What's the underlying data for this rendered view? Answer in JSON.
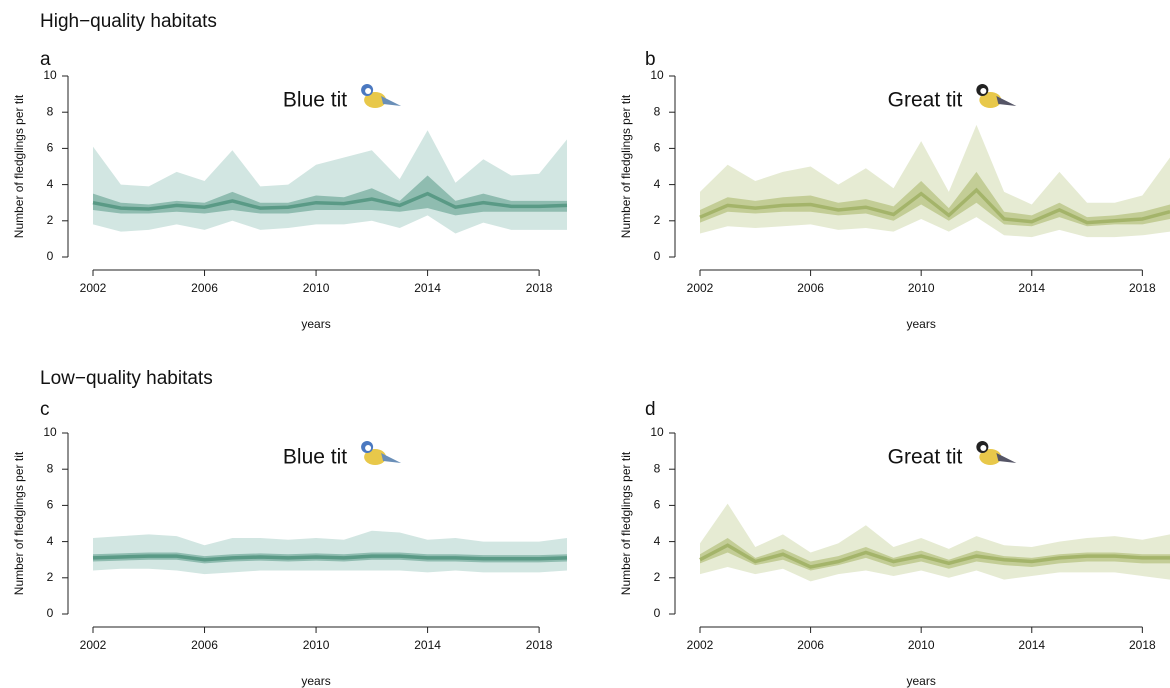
{
  "headings": [
    "High−quality habitats",
    "Low−quality habitats"
  ],
  "chart_data": [
    {
      "type": "line",
      "panel": "a",
      "title": "Blue tit",
      "xlabel": "years",
      "ylabel": "Number of fledglings per tit",
      "x": [
        2002,
        2003,
        2004,
        2005,
        2006,
        2007,
        2008,
        2009,
        2010,
        2011,
        2012,
        2013,
        2014,
        2015,
        2016,
        2017,
        2018,
        2019
      ],
      "xlim": [
        2002,
        2019
      ],
      "xticks": [
        2002,
        2006,
        2010,
        2014,
        2018
      ],
      "ylim": [
        0,
        10
      ],
      "yticks": [
        0,
        2,
        4,
        6,
        8,
        10
      ],
      "color": "#5a9a86",
      "inner_color": "#8fbcb0",
      "outer_color": "#d2e6e2",
      "values": [
        3.0,
        2.7,
        2.65,
        2.85,
        2.75,
        3.1,
        2.7,
        2.75,
        3.0,
        2.95,
        3.2,
        2.85,
        3.5,
        2.75,
        3.0,
        2.8,
        2.8,
        2.85
      ],
      "inner_band": {
        "lower": [
          2.6,
          2.4,
          2.4,
          2.5,
          2.4,
          2.6,
          2.4,
          2.4,
          2.6,
          2.6,
          2.6,
          2.5,
          2.7,
          2.3,
          2.5,
          2.5,
          2.5,
          2.5
        ],
        "upper": [
          3.5,
          3.0,
          2.9,
          3.1,
          3.0,
          3.6,
          3.0,
          3.0,
          3.4,
          3.3,
          3.8,
          3.1,
          4.5,
          3.1,
          3.5,
          3.1,
          3.1,
          3.1
        ]
      },
      "outer_band": {
        "lower": [
          1.8,
          1.4,
          1.5,
          1.8,
          1.5,
          2.0,
          1.5,
          1.6,
          1.8,
          1.8,
          2.0,
          1.6,
          2.3,
          1.3,
          1.9,
          1.5,
          1.5,
          1.5
        ],
        "upper": [
          6.1,
          4.0,
          3.9,
          4.7,
          4.2,
          5.9,
          3.9,
          4.0,
          5.1,
          5.5,
          5.9,
          4.3,
          7.0,
          4.1,
          5.4,
          4.5,
          4.6,
          6.5
        ]
      }
    },
    {
      "type": "line",
      "panel": "b",
      "title": "Great tit",
      "xlabel": "years",
      "ylabel": "Number of fledglings per tit",
      "x": [
        2002,
        2003,
        2004,
        2005,
        2006,
        2007,
        2008,
        2009,
        2010,
        2011,
        2012,
        2013,
        2014,
        2015,
        2016,
        2017,
        2018,
        2019
      ],
      "xlim": [
        2002,
        2019
      ],
      "xticks": [
        2002,
        2006,
        2010,
        2014,
        2018
      ],
      "ylim": [
        0,
        10
      ],
      "yticks": [
        0,
        2,
        4,
        6,
        8,
        10
      ],
      "color": "#a4b46a",
      "inner_color": "#c3cd96",
      "outer_color": "#e6ebd3",
      "values": [
        2.2,
        2.85,
        2.7,
        2.85,
        2.9,
        2.6,
        2.75,
        2.35,
        3.5,
        2.3,
        3.7,
        2.1,
        1.95,
        2.6,
        1.9,
        2.0,
        2.1,
        2.5
      ],
      "inner_band": {
        "lower": [
          1.9,
          2.5,
          2.4,
          2.5,
          2.5,
          2.3,
          2.4,
          2.0,
          2.9,
          2.0,
          3.0,
          1.8,
          1.7,
          2.2,
          1.7,
          1.8,
          1.8,
          2.1
        ],
        "upper": [
          2.6,
          3.3,
          3.1,
          3.3,
          3.4,
          3.0,
          3.2,
          2.8,
          4.2,
          2.7,
          4.7,
          2.5,
          2.3,
          3.0,
          2.2,
          2.3,
          2.5,
          2.9
        ]
      },
      "outer_band": {
        "lower": [
          1.3,
          1.7,
          1.6,
          1.7,
          1.8,
          1.5,
          1.6,
          1.4,
          2.1,
          1.4,
          2.2,
          1.2,
          1.1,
          1.5,
          1.1,
          1.1,
          1.2,
          1.4
        ],
        "upper": [
          3.6,
          5.1,
          4.2,
          4.7,
          5.0,
          4.0,
          4.9,
          3.8,
          6.4,
          3.6,
          7.3,
          3.6,
          2.9,
          4.7,
          3.0,
          3.0,
          3.4,
          5.5
        ]
      }
    },
    {
      "type": "line",
      "panel": "c",
      "title": "Blue tit",
      "xlabel": "years",
      "ylabel": "Number of fledglings per tit",
      "x": [
        2002,
        2003,
        2004,
        2005,
        2006,
        2007,
        2008,
        2009,
        2010,
        2011,
        2012,
        2013,
        2014,
        2015,
        2016,
        2017,
        2018,
        2019
      ],
      "xlim": [
        2002,
        2019
      ],
      "xticks": [
        2002,
        2006,
        2010,
        2014,
        2018
      ],
      "ylim": [
        0,
        10
      ],
      "yticks": [
        0,
        2,
        4,
        6,
        8,
        10
      ],
      "color": "#5a9a86",
      "inner_color": "#8fbcb0",
      "outer_color": "#d2e6e2",
      "values": [
        3.1,
        3.15,
        3.2,
        3.2,
        3.0,
        3.1,
        3.15,
        3.1,
        3.15,
        3.1,
        3.2,
        3.2,
        3.1,
        3.1,
        3.05,
        3.05,
        3.05,
        3.1
      ],
      "inner_band": {
        "lower": [
          2.9,
          2.95,
          3.0,
          3.0,
          2.8,
          2.9,
          2.95,
          2.9,
          2.95,
          2.9,
          3.0,
          3.0,
          2.9,
          2.9,
          2.85,
          2.85,
          2.85,
          2.9
        ],
        "upper": [
          3.3,
          3.35,
          3.4,
          3.4,
          3.2,
          3.3,
          3.35,
          3.3,
          3.35,
          3.3,
          3.4,
          3.4,
          3.3,
          3.3,
          3.25,
          3.25,
          3.25,
          3.3
        ]
      },
      "outer_band": {
        "lower": [
          2.4,
          2.5,
          2.5,
          2.4,
          2.2,
          2.3,
          2.4,
          2.4,
          2.4,
          2.4,
          2.4,
          2.4,
          2.3,
          2.4,
          2.3,
          2.3,
          2.3,
          2.4
        ],
        "upper": [
          4.2,
          4.3,
          4.4,
          4.3,
          3.8,
          4.2,
          4.2,
          4.1,
          4.2,
          4.1,
          4.6,
          4.5,
          4.1,
          4.2,
          4.0,
          4.0,
          4.0,
          4.2
        ]
      }
    },
    {
      "type": "line",
      "panel": "d",
      "title": "Great tit",
      "xlabel": "years",
      "ylabel": "Number of fledglings per tit",
      "x": [
        2002,
        2003,
        2004,
        2005,
        2006,
        2007,
        2008,
        2009,
        2010,
        2011,
        2012,
        2013,
        2014,
        2015,
        2016,
        2017,
        2018,
        2019
      ],
      "xlim": [
        2002,
        2019
      ],
      "xticks": [
        2002,
        2006,
        2010,
        2014,
        2018
      ],
      "ylim": [
        0,
        10
      ],
      "yticks": [
        0,
        2,
        4,
        6,
        8,
        10
      ],
      "color": "#a4b46a",
      "inner_color": "#c3cd96",
      "outer_color": "#e6ebd3",
      "values": [
        3.0,
        3.8,
        2.9,
        3.3,
        2.6,
        2.9,
        3.4,
        2.9,
        3.2,
        2.8,
        3.2,
        3.0,
        2.9,
        3.1,
        3.2,
        3.2,
        3.1,
        3.1
      ],
      "inner_band": {
        "lower": [
          2.8,
          3.4,
          2.7,
          3.0,
          2.4,
          2.7,
          3.1,
          2.6,
          2.9,
          2.5,
          2.9,
          2.7,
          2.6,
          2.8,
          2.9,
          2.9,
          2.8,
          2.8
        ],
        "upper": [
          3.3,
          4.2,
          3.1,
          3.6,
          2.9,
          3.2,
          3.7,
          3.1,
          3.5,
          3.0,
          3.5,
          3.2,
          3.1,
          3.3,
          3.4,
          3.4,
          3.3,
          3.3
        ]
      },
      "outer_band": {
        "lower": [
          2.2,
          2.6,
          2.2,
          2.5,
          1.8,
          2.2,
          2.4,
          2.1,
          2.4,
          2.0,
          2.4,
          1.9,
          2.1,
          2.3,
          2.3,
          2.3,
          2.1,
          1.9
        ],
        "upper": [
          3.9,
          6.1,
          3.7,
          4.4,
          3.4,
          3.9,
          4.9,
          3.7,
          4.2,
          3.6,
          4.3,
          3.8,
          3.7,
          4.0,
          4.2,
          4.3,
          4.1,
          4.4
        ]
      }
    }
  ]
}
